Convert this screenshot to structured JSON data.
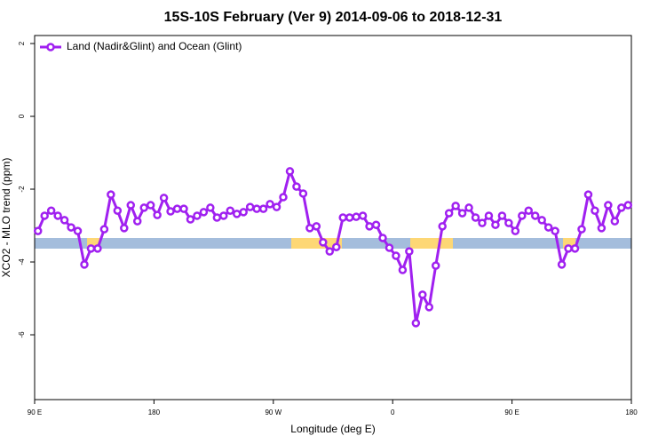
{
  "chart_data": {
    "type": "line",
    "title": "15S-10S February (Ver 9)   2014-09-06 to 2018-12-31",
    "xlabel": "Longitude (deg E)",
    "ylabel": "XCO2 - MLO trend (ppm)",
    "x": [
      92.5,
      97.5,
      102.5,
      107.5,
      112.5,
      117.5,
      122.5,
      127.5,
      132.5,
      137.5,
      142.5,
      147.5,
      152.5,
      157.5,
      162.5,
      167.5,
      172.5,
      177.5,
      182.5,
      187.5,
      192.5,
      197.5,
      202.5,
      207.5,
      212.5,
      217.5,
      222.5,
      227.5,
      232.5,
      237.5,
      242.5,
      247.5,
      252.5,
      257.5,
      262.5,
      267.5,
      272.5,
      277.5,
      282.5,
      287.5,
      292.5,
      297.5,
      302.5,
      307.5,
      312.5,
      317.5,
      322.5,
      327.5,
      332.5,
      337.5,
      342.5,
      347.5,
      352.5,
      357.5,
      362.5,
      367.5,
      372.5,
      377.5,
      382.5,
      387.5,
      392.5,
      397.5,
      402.5,
      407.5,
      412.5,
      417.5,
      422.5,
      427.5,
      432.5,
      437.5,
      442.5,
      447.5,
      452.5,
      457.5,
      462.5,
      467.5,
      472.5,
      477.5,
      482.5,
      487.5,
      492.5,
      497.5,
      502.5,
      507.5,
      512.5,
      517.5,
      522.5,
      527.5,
      532.5,
      537.5
    ],
    "series": [
      {
        "name": "Land (Nadir&Glint) and Ocean (Glint)",
        "color": "#a020f0",
        "values": [
          -3.15,
          -2.73,
          -2.59,
          -2.73,
          -2.85,
          -3.05,
          -3.15,
          -4.07,
          -3.63,
          -3.63,
          -3.1,
          -2.15,
          -2.59,
          -3.07,
          -2.44,
          -2.88,
          -2.51,
          -2.44,
          -2.71,
          -2.24,
          -2.61,
          -2.54,
          -2.54,
          -2.83,
          -2.73,
          -2.63,
          -2.51,
          -2.78,
          -2.73,
          -2.59,
          -2.68,
          -2.63,
          -2.49,
          -2.54,
          -2.54,
          -2.41,
          -2.49,
          -2.22,
          -1.51,
          -1.93,
          -2.12,
          -3.07,
          -3.02,
          -3.46,
          -3.71,
          -3.59,
          -2.78,
          -2.78,
          -2.76,
          -2.73,
          -3.02,
          -2.98,
          -3.34,
          -3.61,
          -3.83,
          -4.22,
          -3.71,
          -5.68,
          -4.9,
          -5.24,
          -4.1,
          -3.02,
          -2.66,
          -2.46,
          -2.66,
          -2.51,
          -2.78,
          -2.93,
          -2.73,
          -2.98,
          -2.73,
          -2.93,
          -3.15,
          -2.73,
          -2.59,
          -2.73,
          -2.85,
          -3.05,
          -3.15,
          -4.07,
          -3.63,
          -3.63,
          -3.1,
          -2.15,
          -2.59,
          -3.07,
          -2.44,
          -2.88,
          -2.51,
          -2.44
        ]
      }
    ],
    "xlim": [
      90,
      540
    ],
    "xticks": [
      {
        "value": 90,
        "label": "90 E"
      },
      180,
      {
        "value": 270,
        "label": "90 W"
      },
      {
        "value": 360,
        "label": "0"
      },
      {
        "value": 450,
        "label": "90 E"
      },
      {
        "value": 540,
        "label": "180"
      }
    ],
    "ylim": [
      -7.78,
      2.22
    ],
    "yticks": [
      2,
      0,
      -2,
      -4,
      -6
    ],
    "legend": "top-left"
  }
}
